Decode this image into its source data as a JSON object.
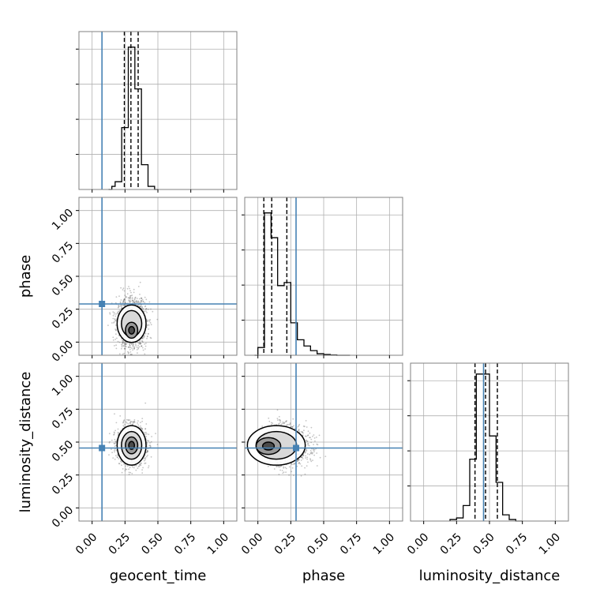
{
  "colors": {
    "truth": "#4682b4",
    "grid": "#b0b0b0",
    "hist": "#000000",
    "frame": "#808080",
    "sample": "#555555"
  },
  "chart_data": {
    "type": "corner",
    "parameters": [
      "geocent_time",
      "phase",
      "luminosity_distance"
    ],
    "axis_labels": {
      "x": [
        "geocent_time",
        "phase",
        "luminosity_distance"
      ],
      "y": [
        "",
        "phase",
        "luminosity_distance"
      ]
    },
    "range": [
      -0.1,
      1.1
    ],
    "ticks": [
      0.0,
      0.25,
      0.5,
      0.75,
      1.0
    ],
    "tick_labels": [
      "0.00",
      "0.25",
      "0.50",
      "0.75",
      "1.00"
    ],
    "grid": true,
    "truths": [
      0.075,
      0.29,
      0.455
    ],
    "quantiles": [
      [
        0.245,
        0.295,
        0.35
      ],
      [
        0.045,
        0.105,
        0.22
      ],
      [
        0.39,
        0.47,
        0.56
      ]
    ],
    "histograms": [
      {
        "bin_edges": [
          0.125,
          0.15,
          0.175,
          0.2,
          0.225,
          0.25,
          0.275,
          0.3,
          0.325,
          0.35,
          0.375,
          0.4,
          0.425,
          0.45,
          0.475,
          0.5
        ],
        "counts": [
          0,
          0.02,
          0.05,
          0.05,
          0.4,
          0.4,
          0.92,
          0.92,
          0.65,
          0.65,
          0.16,
          0.16,
          0.02,
          0.02,
          0
        ]
      },
      {
        "bin_edges": [
          -0.025,
          0.0,
          0.025,
          0.05,
          0.075,
          0.1,
          0.125,
          0.15,
          0.175,
          0.2,
          0.225,
          0.25,
          0.275,
          0.3,
          0.325,
          0.35,
          0.375,
          0.4,
          0.425,
          0.45,
          0.475,
          0.5,
          0.525,
          0.55,
          0.575,
          0.6,
          0.625,
          0.65,
          0.675,
          0.7
        ],
        "counts": [
          0,
          0.05,
          0.05,
          0.92,
          0.92,
          0.76,
          0.76,
          0.45,
          0.45,
          0.47,
          0.47,
          0.21,
          0.21,
          0.1,
          0.1,
          0.06,
          0.06,
          0.03,
          0.03,
          0.01,
          0.01,
          0.005,
          0.005,
          0.002,
          0.002,
          0,
          0,
          0,
          0
        ]
      },
      {
        "bin_edges": [
          0.2,
          0.25,
          0.3,
          0.35,
          0.4,
          0.45,
          0.5,
          0.55,
          0.6,
          0.65,
          0.7,
          0.75
        ],
        "counts": [
          0.01,
          0.02,
          0.1,
          0.4,
          0.95,
          0.95,
          0.55,
          0.25,
          0.04,
          0.01,
          0
        ]
      }
    ],
    "joint": [
      {
        "x_param": 0,
        "y_param": 1,
        "center": [
          0.3,
          0.14
        ],
        "sigma": [
          0.055,
          0.095
        ],
        "density_peak": [
          0.3,
          0.09
        ],
        "n_samples": 1400
      },
      {
        "x_param": 0,
        "y_param": 2,
        "center": [
          0.3,
          0.475
        ],
        "sigma": [
          0.055,
          0.075
        ],
        "density_peak": [
          0.3,
          0.475
        ],
        "n_samples": 1400
      },
      {
        "x_param": 1,
        "y_param": 2,
        "center": [
          0.14,
          0.475
        ],
        "sigma": [
          0.11,
          0.075
        ],
        "density_peak": [
          0.08,
          0.47
        ],
        "n_samples": 1600
      }
    ]
  }
}
